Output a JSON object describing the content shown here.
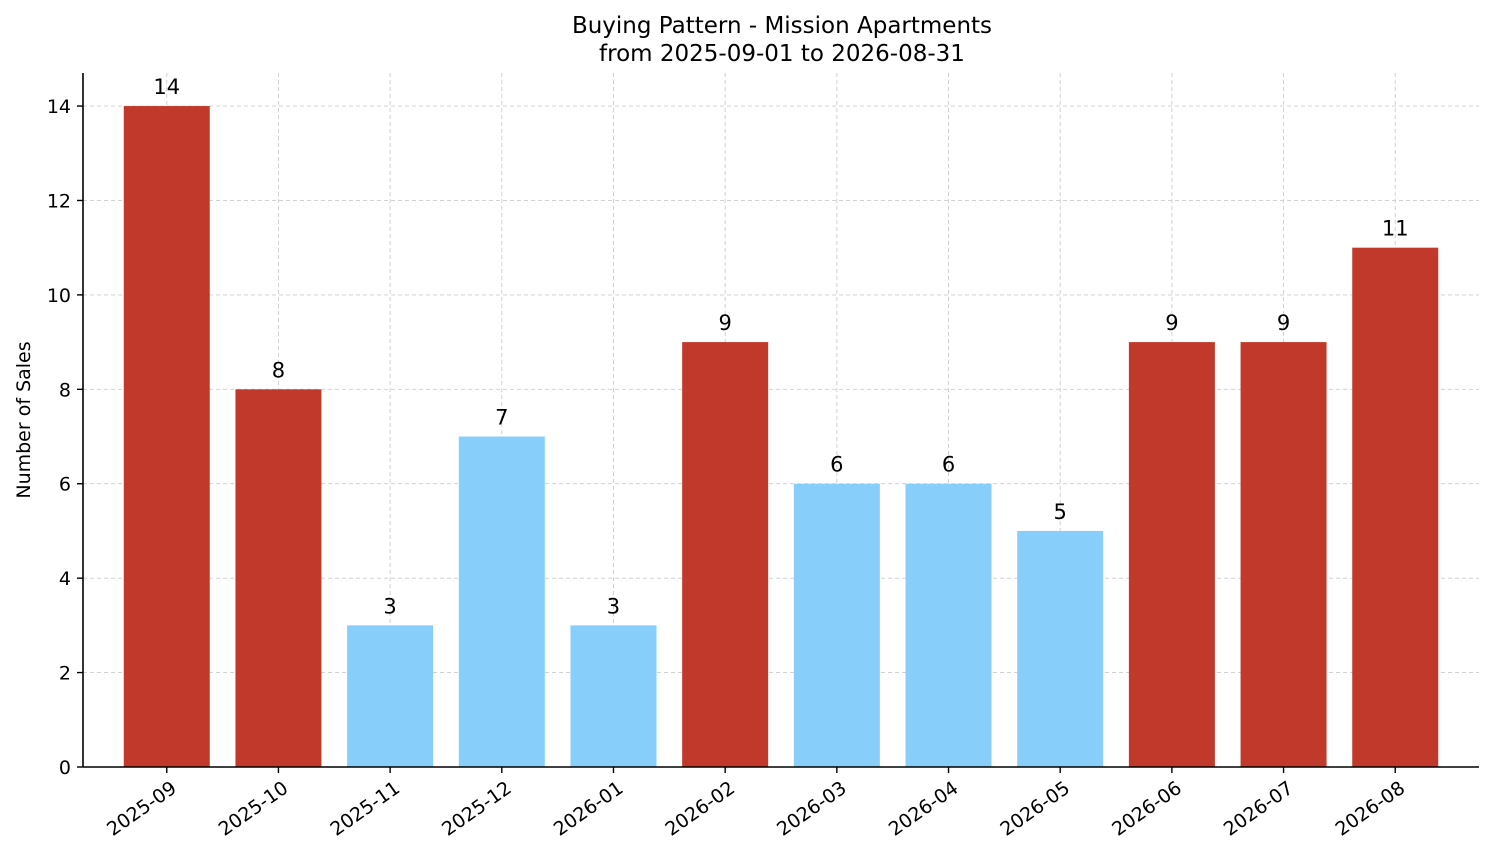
{
  "chart_data": {
    "type": "bar",
    "title": "Buying Pattern - Mission Apartments",
    "subtitle": "from 2025-09-01 to 2026-08-31",
    "xlabel": "",
    "ylabel": "Number of Sales",
    "categories": [
      "2025-09",
      "2025-10",
      "2025-11",
      "2025-12",
      "2026-01",
      "2026-02",
      "2026-03",
      "2026-04",
      "2026-05",
      "2026-06",
      "2026-07",
      "2026-08"
    ],
    "values": [
      14,
      8,
      3,
      7,
      3,
      9,
      6,
      6,
      5,
      9,
      9,
      11
    ],
    "bar_colors": [
      "#c0392b",
      "#c0392b",
      "#87cefa",
      "#87cefa",
      "#87cefa",
      "#c0392b",
      "#87cefa",
      "#87cefa",
      "#87cefa",
      "#c0392b",
      "#c0392b",
      "#c0392b"
    ],
    "ylim": [
      0,
      14.7
    ],
    "yticks": [
      0,
      2,
      4,
      6,
      8,
      10,
      12,
      14
    ],
    "grid": true,
    "legend": "none",
    "colors": {
      "high": "#c0392b",
      "low": "#87cefa"
    }
  }
}
